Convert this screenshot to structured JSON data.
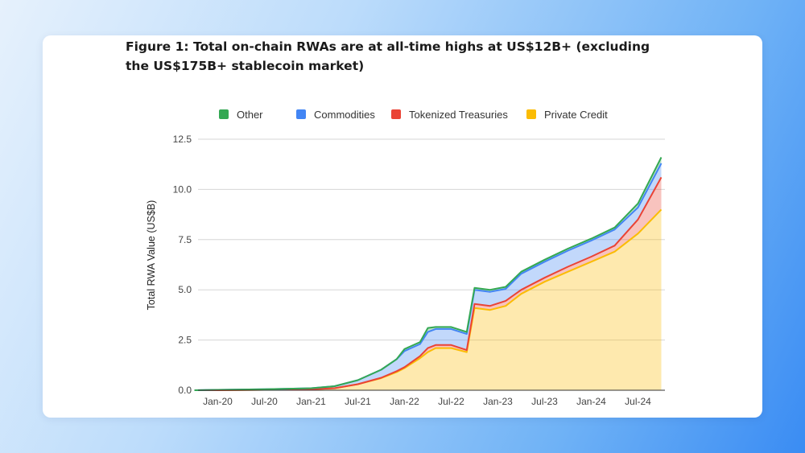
{
  "figure": {
    "title": "Figure 1: Total on-chain RWAs are at all-time highs at US$12B+ (excluding the US$175B+ stablecoin market)"
  },
  "chart_data": {
    "type": "area",
    "stacked": true,
    "ylabel": "Total RWA Value (US$B)",
    "xlabel": "",
    "ylim": [
      0,
      12.5
    ],
    "yticks": [
      0.0,
      2.5,
      5.0,
      7.5,
      10.0,
      12.5
    ],
    "ytick_labels": [
      "0.0",
      "2.5",
      "5.0",
      "7.5",
      "10.0",
      "12.5"
    ],
    "xlim": [
      "2019-10-15",
      "2024-10-15"
    ],
    "xticks": [
      "2020-01",
      "2020-07",
      "2021-01",
      "2021-07",
      "2022-01",
      "2022-07",
      "2023-01",
      "2023-07",
      "2024-01",
      "2024-07"
    ],
    "xtick_labels": [
      "Jan-20",
      "Jul-20",
      "Jan-21",
      "Jul-21",
      "Jan-22",
      "Jul-22",
      "Jan-23",
      "Jul-23",
      "Jan-24",
      "Jul-24"
    ],
    "grid": true,
    "legend_position": "top",
    "x": [
      "2019-10",
      "2020-01",
      "2020-07",
      "2021-01",
      "2021-04",
      "2021-07",
      "2021-10",
      "2021-12",
      "2022-01",
      "2022-03",
      "2022-04",
      "2022-05",
      "2022-07",
      "2022-09",
      "2022-10",
      "2022-12",
      "2023-02",
      "2023-04",
      "2023-07",
      "2023-10",
      "2024-01",
      "2024-04",
      "2024-07",
      "2024-10"
    ],
    "series": [
      {
        "name": "Private Credit",
        "color": "#fbbc04",
        "values": [
          0.0,
          0.0,
          0.02,
          0.05,
          0.1,
          0.3,
          0.6,
          0.9,
          1.1,
          1.6,
          1.9,
          2.1,
          2.1,
          1.9,
          4.1,
          4.0,
          4.2,
          4.8,
          5.4,
          5.9,
          6.4,
          6.9,
          7.8,
          9.0
        ]
      },
      {
        "name": "Tokenized Treasuries",
        "color": "#ea4335",
        "values": [
          0.0,
          0.0,
          0.0,
          0.0,
          0.0,
          0.0,
          0.02,
          0.05,
          0.05,
          0.1,
          0.2,
          0.15,
          0.15,
          0.1,
          0.2,
          0.2,
          0.25,
          0.2,
          0.2,
          0.25,
          0.25,
          0.3,
          0.7,
          1.6
        ]
      },
      {
        "name": "Commodities",
        "color": "#4285f4",
        "values": [
          0.0,
          0.02,
          0.03,
          0.05,
          0.1,
          0.2,
          0.4,
          0.6,
          0.8,
          0.6,
          0.8,
          0.8,
          0.8,
          0.8,
          0.7,
          0.7,
          0.6,
          0.8,
          0.8,
          0.8,
          0.8,
          0.8,
          0.6,
          0.7
        ]
      },
      {
        "name": "Other",
        "color": "#34a853",
        "values": [
          0.0,
          0.0,
          0.0,
          0.0,
          0.0,
          0.0,
          0.0,
          0.0,
          0.1,
          0.1,
          0.2,
          0.1,
          0.1,
          0.1,
          0.1,
          0.1,
          0.1,
          0.1,
          0.1,
          0.1,
          0.1,
          0.1,
          0.2,
          0.3
        ]
      }
    ],
    "legend_order": [
      "Other",
      "Commodities",
      "Tokenized Treasuries",
      "Private Credit"
    ]
  }
}
